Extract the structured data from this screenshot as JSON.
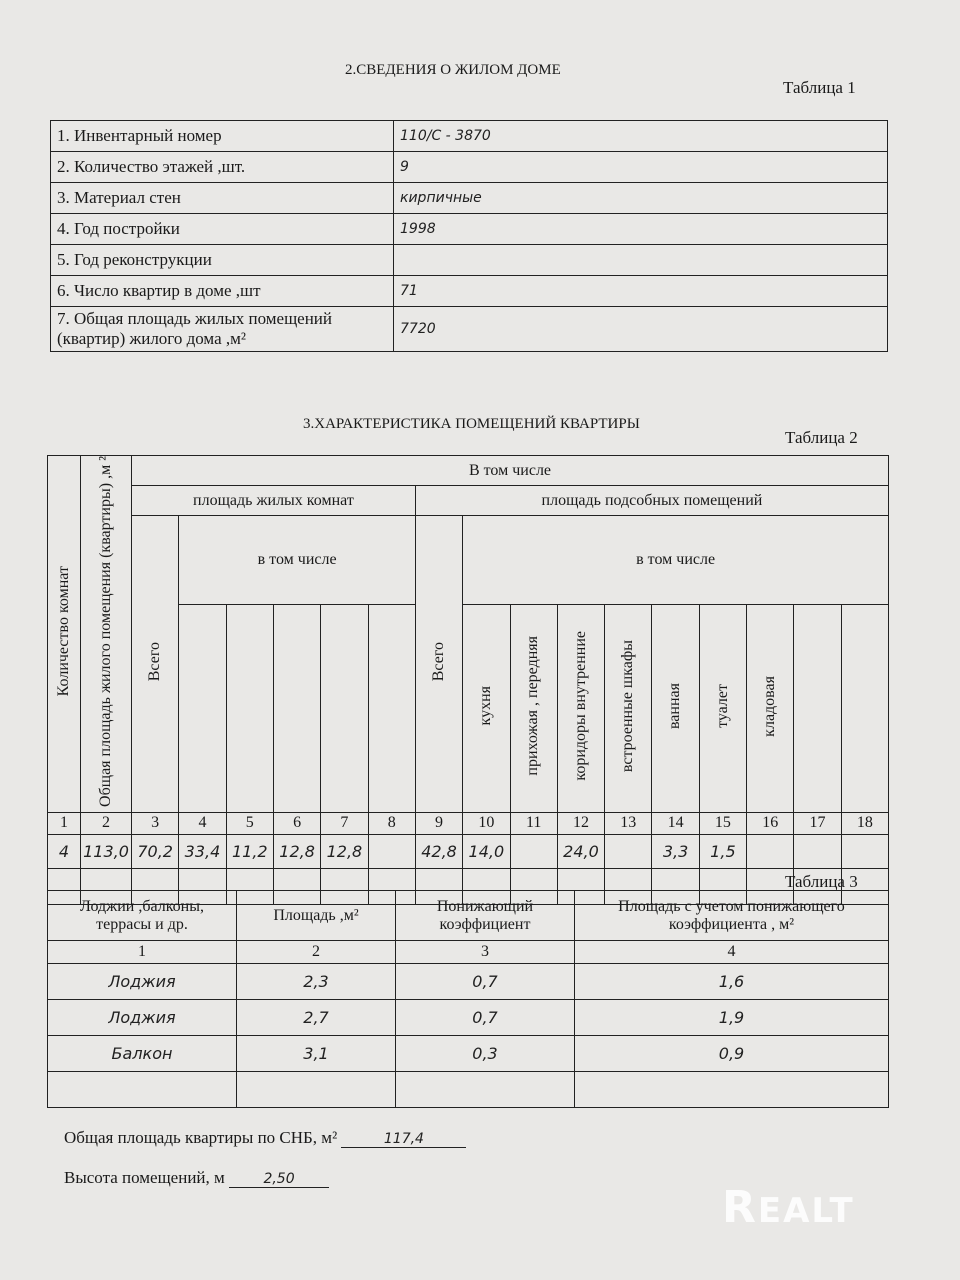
{
  "section2": {
    "title": "2.СВЕДЕНИЯ О ЖИЛОМ ДОМЕ",
    "table_label": "Таблица 1",
    "rows": [
      {
        "label": "1. Инвентарный номер",
        "value": "110/С - 3870"
      },
      {
        "label": "2. Количество этажей ,шт.",
        "value": "9"
      },
      {
        "label": "3. Материал стен",
        "value": "кирпичные"
      },
      {
        "label": "4. Год постройки",
        "value": "1998"
      },
      {
        "label": "5. Год  реконструкции",
        "value": ""
      },
      {
        "label": "6. Число квартир в доме ,шт",
        "value": "71"
      },
      {
        "label": "7. Общая площадь жилых помещений (квартир) жилого дома ,м²",
        "value": "7720"
      }
    ]
  },
  "section3": {
    "title": "3.ХАРАКТЕРИСТИКА ПОМЕЩЕНИЙ КВАРТИРЫ",
    "table_label": "Таблица 2",
    "h_rooms_count": "Количество комнат",
    "h_total_area": "Общая площадь жилого помещения (квартиры) ,м ²",
    "h_incl": "В том  числе",
    "h_living": "площадь жилых комнат",
    "h_aux": "площадь подсобных помещений",
    "h_total": "Всего",
    "h_incl2": "в том  числе",
    "aux_cols": [
      "кухня",
      "прихожая , передняя",
      "коридоры внутренние",
      "встроенные шкафы",
      "ванная",
      "туалет",
      "кладовая",
      "",
      ""
    ],
    "col_numbers": [
      "1",
      "2",
      "3",
      "4",
      "5",
      "6",
      "7",
      "8",
      "9",
      "10",
      "11",
      "12",
      "13",
      "14",
      "15",
      "16",
      "17",
      "18"
    ],
    "data_row": [
      "4",
      "113,0",
      "70,2",
      "33,4",
      "11,2",
      "12,8",
      "12,8",
      "",
      "42,8",
      "14,0",
      "",
      "24,0",
      "",
      "3,3",
      "1,5",
      "",
      "",
      ""
    ]
  },
  "table3": {
    "table_label": "Таблица 3",
    "headers": [
      "Лоджии ,балконы, террасы и др.",
      "Площадь ,м²",
      "Понижающий коэффициент",
      "Площадь с учетом понижающего коэффициента , м²"
    ],
    "col_numbers": [
      "1",
      "2",
      "3",
      "4"
    ],
    "rows": [
      [
        "Лоджия",
        "2,3",
        "0,7",
        "1,6"
      ],
      [
        "Лоджия",
        "2,7",
        "0,7",
        "1,9"
      ],
      [
        "Балкон",
        "3,1",
        "0,3",
        "0,9"
      ],
      [
        "",
        "",
        "",
        ""
      ]
    ]
  },
  "summary": {
    "total_label": "Общая площадь  квартиры по СНБ, м²",
    "total_value": "117,4",
    "height_label": "Высота помещений, м",
    "height_value": "2,50"
  },
  "watermark": "REALT"
}
